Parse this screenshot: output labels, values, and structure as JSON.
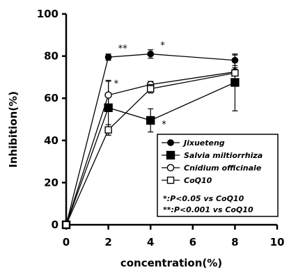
{
  "chart_data": {
    "type": "line",
    "xlabel": "concentration(%)",
    "ylabel": "Inhibition(%)",
    "xlim": [
      0,
      10
    ],
    "ylim": [
      0,
      100
    ],
    "xticks": [
      "0",
      "2",
      "4",
      "6",
      "8",
      "10"
    ],
    "yticks": [
      "0",
      "20",
      "40",
      "60",
      "80",
      "100"
    ],
    "grid": false,
    "legend_position": "bottom-right",
    "series": [
      {
        "name": "Jixueteng",
        "marker": "circle-filled",
        "x": [
          0,
          2,
          4,
          8
        ],
        "y": [
          0,
          79.5,
          81,
          78
        ],
        "err": [
          0,
          1.5,
          2,
          2.5
        ],
        "sig": [
          "",
          "**",
          "*",
          ""
        ]
      },
      {
        "name": "Salvia miltiorrhiza",
        "marker": "square-filled",
        "x": [
          0,
          2,
          4,
          8
        ],
        "y": [
          0,
          55.5,
          49.5,
          67.5
        ],
        "err": [
          0,
          13,
          5.5,
          13.5
        ],
        "sig": [
          "",
          "",
          "*",
          ""
        ]
      },
      {
        "name": "Cnidium officinale",
        "marker": "circle-open",
        "x": [
          0,
          2,
          4,
          8
        ],
        "y": [
          0,
          61.5,
          66.5,
          72.5
        ],
        "err": [
          0,
          6.5,
          1.5,
          2
        ],
        "sig": [
          "",
          "*",
          "",
          ""
        ]
      },
      {
        "name": "CoQ10",
        "marker": "square-open",
        "x": [
          0,
          2,
          4,
          8
        ],
        "y": [
          0,
          45,
          64.5,
          72
        ],
        "err": [
          0,
          2.5,
          2,
          1.5
        ],
        "sig": [
          "",
          "",
          "",
          ""
        ]
      }
    ],
    "notes": [
      "*:P<0.05  vs CoQ10",
      "**:P<0.001  vs CoQ10"
    ]
  }
}
